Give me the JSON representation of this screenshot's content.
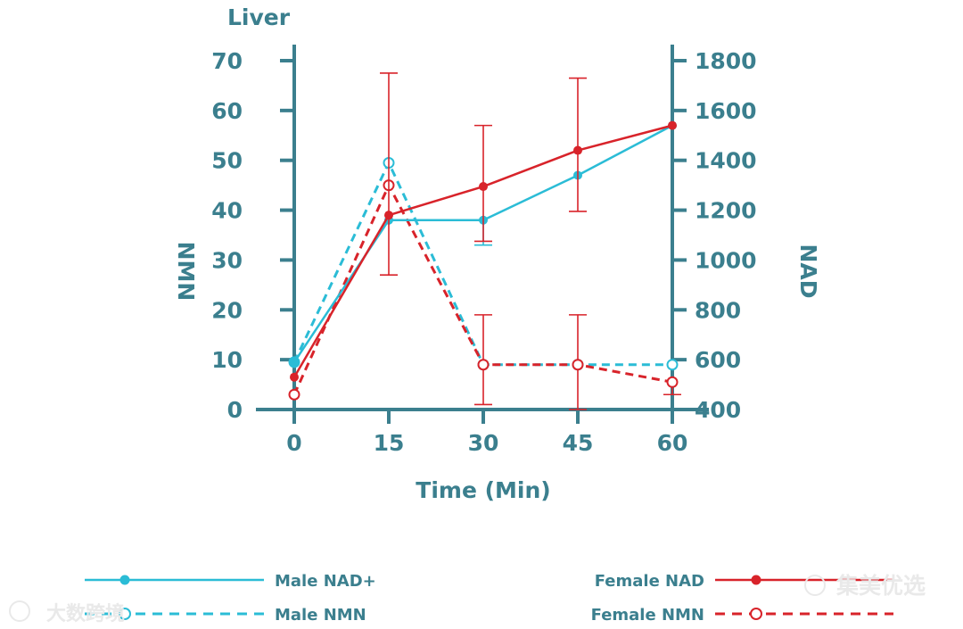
{
  "chart_data": {
    "type": "line",
    "title": "Liver",
    "xlabel": "Time (Min)",
    "ylabel_left": "NMN",
    "ylabel_right": "NAD",
    "x": [
      0,
      15,
      30,
      45,
      60
    ],
    "x_ticks": [
      "0",
      "15",
      "30",
      "45",
      "60"
    ],
    "ylim_left": [
      0,
      70
    ],
    "y_ticks_left": [
      "0",
      "10",
      "20",
      "30",
      "40",
      "50",
      "60",
      "70"
    ],
    "ylim_right": [
      400,
      1800
    ],
    "y_ticks_right": [
      "400",
      "600",
      "800",
      "1000",
      "1200",
      "1400",
      "1600",
      "1800"
    ],
    "colors": {
      "axis": "#3b7f8e",
      "male": "#2bbcd6",
      "female": "#d8232a"
    },
    "series": [
      {
        "name": "Male NAD+",
        "axis": "right",
        "style": "solid",
        "marker": "filled",
        "color": "#2bbcd6",
        "values": [
          590,
          1160,
          1160,
          1340,
          1540
        ],
        "error_low": [
          null,
          null,
          1060,
          null,
          null
        ],
        "error_high": [
          null,
          null,
          null,
          null,
          null
        ]
      },
      {
        "name": "Female NAD",
        "axis": "right",
        "style": "solid",
        "marker": "filled",
        "color": "#d8232a",
        "values": [
          530,
          1180,
          1295,
          1440,
          1540
        ],
        "error_low": [
          null,
          940,
          1075,
          1195,
          null
        ],
        "error_high": [
          null,
          1750,
          1540,
          1730,
          null
        ]
      },
      {
        "name": "Male NMN",
        "axis": "left",
        "style": "dashed",
        "marker": "hollow",
        "color": "#2bbcd6",
        "values": [
          9.5,
          49.5,
          9,
          9,
          9
        ],
        "error_low": [
          null,
          null,
          null,
          null,
          null
        ],
        "error_high": [
          null,
          null,
          null,
          null,
          null
        ]
      },
      {
        "name": "Female NMN",
        "axis": "left",
        "style": "dashed",
        "marker": "hollow",
        "color": "#d8232a",
        "values": [
          3,
          45,
          9,
          9,
          5.5
        ],
        "error_low": [
          null,
          null,
          1,
          0,
          3
        ],
        "error_high": [
          null,
          null,
          19,
          19,
          null
        ]
      }
    ],
    "legend": {
      "placement": "bottom",
      "left": [
        "Male NAD+",
        "Male NMN"
      ],
      "right": [
        "Female NAD",
        "Female NMN"
      ]
    }
  },
  "watermarks": [
    "大数跨境",
    "集美优选"
  ]
}
